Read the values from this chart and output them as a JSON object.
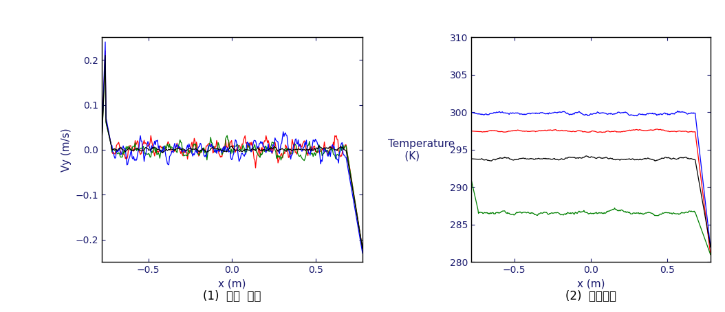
{
  "fig_width": 10.54,
  "fig_height": 4.54,
  "background_color": "#ffffff",
  "x_range": [
    -0.78,
    0.78
  ],
  "subplot1": {
    "ylabel": "Vy (m/s)",
    "xlabel": "x (m)",
    "ylim": [
      -0.25,
      0.25
    ],
    "xlim": [
      -0.78,
      0.78
    ],
    "yticks": [
      -0.2,
      -0.1,
      0.0,
      0.1,
      0.2
    ],
    "xticks": [
      -0.5,
      0.0,
      0.5
    ],
    "caption": "(1)  평균  속도"
  },
  "subplot2": {
    "ylabel_line1": "Temperature",
    "ylabel_line2": "  (K)",
    "xlabel": "x (m)",
    "ylim": [
      280,
      310
    ],
    "xlim": [
      -0.78,
      0.78
    ],
    "yticks": [
      280,
      285,
      290,
      295,
      300,
      305,
      310
    ],
    "xticks": [
      -0.5,
      0.0,
      0.5
    ],
    "caption": "(2)  평균온도"
  },
  "colors": {
    "red": "#ff0000",
    "green": "#008000",
    "blue": "#0000ff",
    "black": "#000000"
  },
  "tick_label_color": "#1a1a6e",
  "axis_label_color": "#1a1a6e",
  "line_width": 0.9
}
